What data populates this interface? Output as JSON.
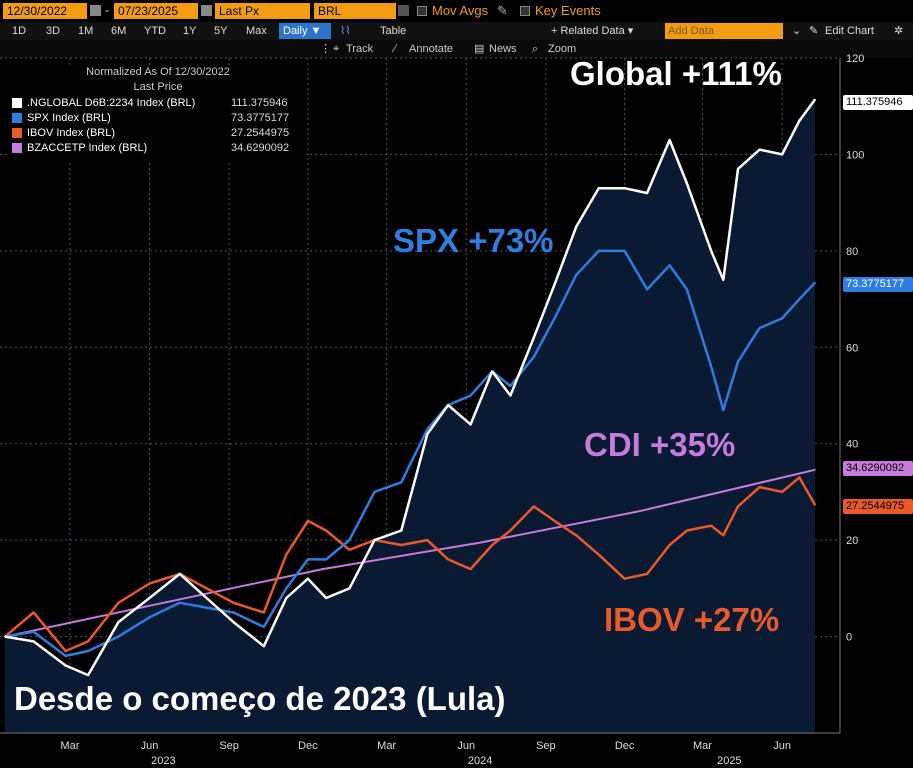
{
  "toolbar": {
    "start_date": "12/30/2022",
    "date_sep": "-",
    "end_date": "07/23/2025",
    "field": "Last Px",
    "currency": "BRL",
    "mov_avgs": "Mov Avgs",
    "key_events": "Key Events"
  },
  "ranges": [
    "1D",
    "3D",
    "1M",
    "6M",
    "YTD",
    "1Y",
    "5Y",
    "Max"
  ],
  "periodicity": "Daily ▼",
  "table_label": "Table",
  "related_data": "+ Related Data ▾",
  "add_data_placeholder": "Add Data",
  "edit_chart": "Edit Chart",
  "tools": {
    "track": "Track",
    "annotate": "Annotate",
    "news": "News",
    "zoom": "Zoom"
  },
  "colors": {
    "global": "#ffffff",
    "spx": "#2f7de0",
    "ibov": "#e85a2a",
    "cdi": "#c77bdc",
    "background": "#0b1a33"
  },
  "chart_data": {
    "type": "line",
    "legend_title": "Normalized As Of 12/30/2022",
    "legend_subtitle": "Last Price",
    "legend_position": "top-left",
    "ylim": [
      -20,
      120
    ],
    "yticks": [
      0,
      20,
      40,
      60,
      80,
      100,
      120
    ],
    "x_months": [
      "Mar",
      "Jun",
      "Sep",
      "Dec",
      "Mar",
      "Jun",
      "Sep",
      "Dec",
      "Mar",
      "Jun"
    ],
    "x_years": [
      "2023",
      "2024",
      "2025"
    ],
    "x_range": [
      "2022-12-30",
      "2025-07-23"
    ],
    "series": [
      {
        "name": ".NGLOBAL D6B:2234 Index (BRL)",
        "last": "111.375946",
        "color": "#ffffff",
        "points": [
          [
            "2022-12-30",
            0
          ],
          [
            "2023-02-01",
            -1
          ],
          [
            "2023-03-10",
            -6
          ],
          [
            "2023-04-05",
            -8
          ],
          [
            "2023-05-10",
            3
          ],
          [
            "2023-06-15",
            8
          ],
          [
            "2023-07-20",
            13
          ],
          [
            "2023-08-20",
            8
          ],
          [
            "2023-09-20",
            3
          ],
          [
            "2023-10-25",
            -2
          ],
          [
            "2023-11-20",
            8
          ],
          [
            "2023-12-15",
            12
          ],
          [
            "2024-01-05",
            8
          ],
          [
            "2024-02-01",
            10
          ],
          [
            "2024-03-01",
            20
          ],
          [
            "2024-04-01",
            22
          ],
          [
            "2024-05-01",
            42
          ],
          [
            "2024-05-25",
            48
          ],
          [
            "2024-06-20",
            44
          ],
          [
            "2024-07-15",
            55
          ],
          [
            "2024-08-05",
            50
          ],
          [
            "2024-09-01",
            62
          ],
          [
            "2024-09-25",
            73
          ],
          [
            "2024-10-20",
            85
          ],
          [
            "2024-11-15",
            93
          ],
          [
            "2024-12-15",
            93
          ],
          [
            "2025-01-10",
            92
          ],
          [
            "2025-02-05",
            103
          ],
          [
            "2025-02-25",
            94
          ],
          [
            "2025-03-25",
            80
          ],
          [
            "2025-04-08",
            74
          ],
          [
            "2025-04-25",
            97
          ],
          [
            "2025-05-20",
            101
          ],
          [
            "2025-06-15",
            100
          ],
          [
            "2025-07-05",
            107
          ],
          [
            "2025-07-23",
            111.4
          ]
        ]
      },
      {
        "name": "SPX Index (BRL)",
        "last": "73.3775177",
        "color": "#2f7de0",
        "points": [
          [
            "2022-12-30",
            0
          ],
          [
            "2023-02-01",
            1
          ],
          [
            "2023-03-10",
            -4
          ],
          [
            "2023-04-05",
            -3
          ],
          [
            "2023-05-10",
            0
          ],
          [
            "2023-06-15",
            4
          ],
          [
            "2023-07-20",
            7
          ],
          [
            "2023-08-20",
            6
          ],
          [
            "2023-09-20",
            5
          ],
          [
            "2023-10-25",
            2
          ],
          [
            "2023-11-20",
            10
          ],
          [
            "2023-12-15",
            16
          ],
          [
            "2024-01-05",
            16
          ],
          [
            "2024-02-01",
            20
          ],
          [
            "2024-03-01",
            30
          ],
          [
            "2024-04-01",
            32
          ],
          [
            "2024-05-01",
            43
          ],
          [
            "2024-05-25",
            48
          ],
          [
            "2024-06-20",
            50
          ],
          [
            "2024-07-15",
            55
          ],
          [
            "2024-08-05",
            52
          ],
          [
            "2024-09-01",
            58
          ],
          [
            "2024-09-25",
            66
          ],
          [
            "2024-10-20",
            75
          ],
          [
            "2024-11-15",
            80
          ],
          [
            "2024-12-15",
            80
          ],
          [
            "2025-01-10",
            72
          ],
          [
            "2025-02-05",
            77
          ],
          [
            "2025-02-25",
            72
          ],
          [
            "2025-03-25",
            56
          ],
          [
            "2025-04-08",
            47
          ],
          [
            "2025-04-25",
            57
          ],
          [
            "2025-05-20",
            64
          ],
          [
            "2025-06-15",
            66
          ],
          [
            "2025-07-05",
            70
          ],
          [
            "2025-07-23",
            73.4
          ]
        ]
      },
      {
        "name": "IBOV Index (BRL)",
        "last": "27.2544975",
        "color": "#e85a2a",
        "points": [
          [
            "2022-12-30",
            0
          ],
          [
            "2023-02-01",
            5
          ],
          [
            "2023-03-10",
            -3
          ],
          [
            "2023-04-05",
            -1
          ],
          [
            "2023-05-10",
            7
          ],
          [
            "2023-06-15",
            11
          ],
          [
            "2023-07-20",
            13
          ],
          [
            "2023-08-20",
            10
          ],
          [
            "2023-09-20",
            7
          ],
          [
            "2023-10-25",
            5
          ],
          [
            "2023-11-20",
            17
          ],
          [
            "2023-12-15",
            24
          ],
          [
            "2024-01-05",
            22
          ],
          [
            "2024-02-01",
            18
          ],
          [
            "2024-03-01",
            20
          ],
          [
            "2024-04-01",
            19
          ],
          [
            "2024-05-01",
            20
          ],
          [
            "2024-05-25",
            16
          ],
          [
            "2024-06-20",
            14
          ],
          [
            "2024-07-15",
            19
          ],
          [
            "2024-08-05",
            22
          ],
          [
            "2024-09-01",
            27
          ],
          [
            "2024-09-25",
            24
          ],
          [
            "2024-10-20",
            21
          ],
          [
            "2024-11-15",
            17
          ],
          [
            "2024-12-15",
            12
          ],
          [
            "2025-01-10",
            13
          ],
          [
            "2025-02-05",
            19
          ],
          [
            "2025-02-25",
            22
          ],
          [
            "2025-03-25",
            23
          ],
          [
            "2025-04-08",
            21
          ],
          [
            "2025-04-25",
            27
          ],
          [
            "2025-05-20",
            31
          ],
          [
            "2025-06-15",
            30
          ],
          [
            "2025-07-05",
            33
          ],
          [
            "2025-07-23",
            27.3
          ]
        ]
      },
      {
        "name": "BZACCETP Index (BRL)",
        "last": "34.6290092",
        "color": "#c77bdc",
        "points": [
          [
            "2022-12-30",
            0
          ],
          [
            "2023-07-01",
            7
          ],
          [
            "2024-01-01",
            14
          ],
          [
            "2024-07-01",
            19.5
          ],
          [
            "2025-01-01",
            26
          ],
          [
            "2025-07-23",
            34.6
          ]
        ]
      }
    ],
    "annotations": [
      {
        "text": "Global +111%",
        "color": "#ffffff"
      },
      {
        "text": "SPX +73%",
        "color": "#2f7de0"
      },
      {
        "text": "CDI +35%",
        "color": "#c77bdc"
      },
      {
        "text": "IBOV +27%",
        "color": "#e85a2a"
      }
    ],
    "caption": "Desde o começo de 2023 (Lula)"
  }
}
